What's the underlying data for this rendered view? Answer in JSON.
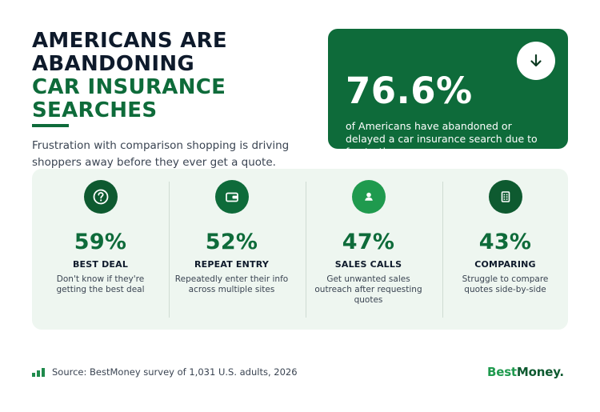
{
  "headline": {
    "line1": "AMERICANS ARE",
    "line2": "ABANDONING",
    "line3": "CAR INSURANCE",
    "line4": "SEARCHES"
  },
  "subtitle": {
    "line1": "Frustration with comparison shopping is driving",
    "line2": "shoppers away before they ever get a quote."
  },
  "highlight": {
    "value": "76.6%",
    "desc_line1": "of Americans have abandoned or",
    "desc_line2": "delayed a car insurance search due to",
    "desc_line3": "frustration.",
    "icon": "arrow-down-icon"
  },
  "metrics": [
    {
      "icon": "question-icon",
      "value": "59%",
      "label": "BEST DEAL",
      "desc": [
        "Don't know if they're",
        "getting the best deal"
      ],
      "circle_color": "#0e5a30"
    },
    {
      "icon": "wallet-icon",
      "value": "52%",
      "label": "REPEAT ENTRY",
      "desc": [
        "Repeatedly enter their info",
        "across multiple sites"
      ],
      "circle_color": "#0e6b3a"
    },
    {
      "icon": "user-icon",
      "value": "47%",
      "label": "SALES CALLS",
      "desc": [
        "Get unwanted sales",
        "outreach after requesting",
        "quotes"
      ],
      "circle_color": "#1f9a4e"
    },
    {
      "icon": "document-icon",
      "value": "43%",
      "label": "COMPARING",
      "desc": [
        "Struggle to compare",
        "quotes side-by-side"
      ],
      "circle_color": "#0e5a30"
    }
  ],
  "footer": {
    "source": "Source: BestMoney survey of 1,031 U.S. adults, 2026",
    "icon": "bar-chart-icon"
  },
  "logo": {
    "best": "Best",
    "money": "Money",
    "dot": "."
  },
  "colors": {
    "brand_green": "#0e6b3a",
    "accent_green": "#1f9a4e",
    "panel_bg": "#eef6f0",
    "headline_dark": "#0e1a2b"
  }
}
